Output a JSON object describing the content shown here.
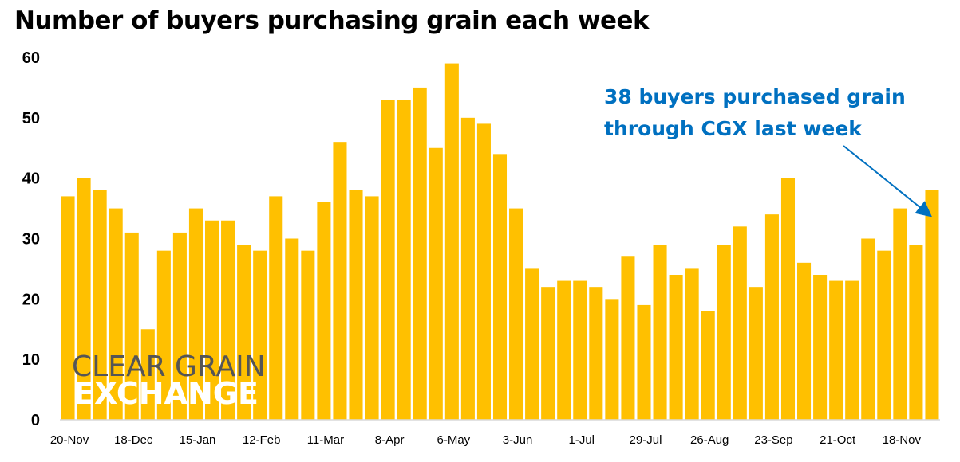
{
  "chart_data": {
    "type": "bar",
    "title": "Number of buyers purchasing grain each week",
    "xlabel": "",
    "ylabel": "",
    "ylim": [
      0,
      60
    ],
    "yticks": [
      0,
      10,
      20,
      30,
      40,
      50,
      60
    ],
    "grid": false,
    "bar_color": "#FFC000",
    "tick_labels": [
      "20-Nov",
      "18-Dec",
      "15-Jan",
      "12-Feb",
      "11-Mar",
      "8-Apr",
      "6-May",
      "3-Jun",
      "1-Jul",
      "29-Jul",
      "26-Aug",
      "23-Sep",
      "21-Oct",
      "18-Nov"
    ],
    "tick_every_n_bars": 4,
    "values": [
      37,
      40,
      38,
      35,
      31,
      15,
      28,
      31,
      35,
      33,
      33,
      29,
      28,
      37,
      30,
      28,
      36,
      46,
      38,
      37,
      53,
      53,
      55,
      45,
      59,
      50,
      49,
      44,
      35,
      25,
      22,
      23,
      23,
      22,
      20,
      27,
      19,
      29,
      24,
      25,
      18,
      29,
      32,
      22,
      34,
      40,
      26,
      24,
      23,
      23,
      30,
      28,
      35,
      29,
      38
    ],
    "annotation": {
      "lines": [
        "38 buyers purchased grain",
        "through CGX last week"
      ],
      "color": "#0070C0",
      "points_to": "last bar"
    }
  },
  "logo": {
    "line1": "CLEAR GRAIN",
    "line2": "EXCHANGE"
  }
}
